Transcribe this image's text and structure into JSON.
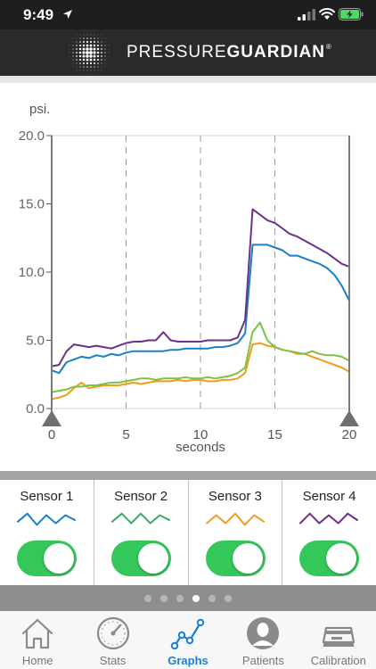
{
  "status_bar": {
    "time": "9:49"
  },
  "header": {
    "brand_light": "PRESSURE",
    "brand_bold": "GUARDIAN",
    "reg_mark": "®"
  },
  "colors": {
    "sensor1": "#1a7fc4",
    "sensor2": "#7cc242",
    "sensor3": "#f39a1f",
    "sensor4": "#6b2f8c",
    "toggle_on": "#34c759",
    "tab_active": "#1a7fd4"
  },
  "chart_data": {
    "type": "line",
    "ylabel": "psi.",
    "xlabel": "seconds",
    "xlim": [
      0,
      20
    ],
    "ylim": [
      0,
      20
    ],
    "x_ticks": [
      "0",
      "5",
      "10",
      "15",
      "20"
    ],
    "y_ticks": [
      "0.0",
      "5.0",
      "10.0",
      "15.0",
      "20.0"
    ],
    "x": [
      0,
      0.5,
      1,
      1.5,
      2,
      2.5,
      3,
      3.5,
      4,
      4.5,
      5,
      5.5,
      6,
      6.5,
      7,
      7.5,
      8,
      8.5,
      9,
      9.5,
      10,
      10.5,
      11,
      11.5,
      12,
      12.5,
      13,
      13.5,
      14,
      14.5,
      15,
      15.5,
      16,
      16.5,
      17,
      17.5,
      18,
      18.5,
      19,
      19.5,
      20
    ],
    "series": [
      {
        "key": "s1",
        "values": [
          2.8,
          2.6,
          3.4,
          3.6,
          3.8,
          3.7,
          3.9,
          3.8,
          4.0,
          3.9,
          4.1,
          4.2,
          4.2,
          4.2,
          4.2,
          4.2,
          4.3,
          4.3,
          4.4,
          4.4,
          4.4,
          4.4,
          4.5,
          4.5,
          4.6,
          4.8,
          5.5,
          12.0,
          12.0,
          12.0,
          11.8,
          11.6,
          11.2,
          11.2,
          11.0,
          10.8,
          10.6,
          10.3,
          9.8,
          9.0,
          7.9
        ]
      },
      {
        "key": "s2",
        "values": [
          1.2,
          1.3,
          1.4,
          1.6,
          1.6,
          1.7,
          1.7,
          1.8,
          1.9,
          1.9,
          2.0,
          2.1,
          2.2,
          2.2,
          2.1,
          2.2,
          2.2,
          2.2,
          2.3,
          2.2,
          2.2,
          2.3,
          2.2,
          2.3,
          2.4,
          2.6,
          3.0,
          5.6,
          6.3,
          5.0,
          4.5,
          4.3,
          4.2,
          4.1,
          4.0,
          4.2,
          4.0,
          3.9,
          3.9,
          3.8,
          3.5
        ]
      },
      {
        "key": "s3",
        "values": [
          0.7,
          0.8,
          1.0,
          1.5,
          1.9,
          1.5,
          1.6,
          1.7,
          1.7,
          1.7,
          1.8,
          1.9,
          1.8,
          1.9,
          2.0,
          2.0,
          2.0,
          2.1,
          2.0,
          2.1,
          2.1,
          2.0,
          2.0,
          2.1,
          2.1,
          2.2,
          2.6,
          4.7,
          4.8,
          4.6,
          4.5,
          4.3,
          4.2,
          4.0,
          4.0,
          3.8,
          3.6,
          3.4,
          3.2,
          3.0,
          2.7
        ]
      },
      {
        "key": "s4",
        "values": [
          3.1,
          3.2,
          4.2,
          4.7,
          4.6,
          4.5,
          4.6,
          4.5,
          4.4,
          4.6,
          4.8,
          4.9,
          4.9,
          5.0,
          5.0,
          5.6,
          5.0,
          4.9,
          4.9,
          4.9,
          4.9,
          5.0,
          5.0,
          5.0,
          5.0,
          5.2,
          6.5,
          14.6,
          14.2,
          13.8,
          13.6,
          13.2,
          12.8,
          12.6,
          12.3,
          12.0,
          11.7,
          11.4,
          11.0,
          10.6,
          10.4
        ]
      }
    ]
  },
  "sensors": [
    {
      "name": "Sensor 1",
      "color": "#1a7fc4",
      "spark": [
        0.4,
        0.9,
        0.2,
        0.8,
        0.3,
        0.8,
        0.5
      ]
    },
    {
      "name": "Sensor 2",
      "color": "#3aa86b",
      "spark": [
        0.4,
        0.9,
        0.3,
        0.9,
        0.3,
        0.8,
        0.5
      ]
    },
    {
      "name": "Sensor 3",
      "color": "#f39a1f",
      "spark": [
        0.3,
        0.8,
        0.3,
        0.9,
        0.2,
        0.8,
        0.4
      ]
    },
    {
      "name": "Sensor 4",
      "color": "#6b2f8c",
      "spark": [
        0.3,
        0.9,
        0.3,
        0.8,
        0.3,
        0.9,
        0.5
      ]
    }
  ],
  "pagination": {
    "count": 6,
    "active_index": 3
  },
  "tabs": [
    {
      "label": "Home",
      "icon": "home-icon",
      "active": false
    },
    {
      "label": "Stats",
      "icon": "gauge-icon",
      "active": false
    },
    {
      "label": "Graphs",
      "icon": "graph-icon",
      "active": true
    },
    {
      "label": "Patients",
      "icon": "person-icon",
      "active": false
    },
    {
      "label": "Calibration",
      "icon": "scale-icon",
      "active": false
    }
  ]
}
